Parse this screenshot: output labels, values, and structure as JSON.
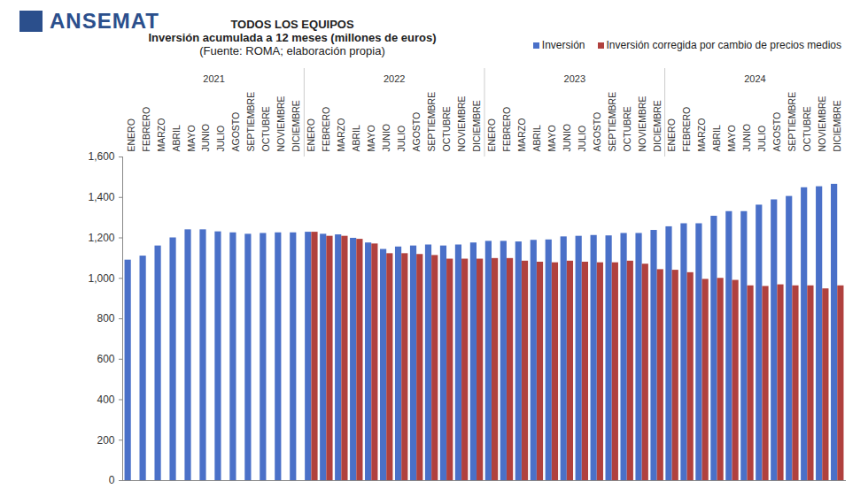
{
  "chart_data": {
    "type": "bar",
    "brand": "ANSEMAT",
    "title": "TODOS LOS EQUIPOS",
    "subtitle": "Inversión acumulada a 12 meses (millones de euros)",
    "caption": "(Fuente: ROMA; elaboración propia)",
    "category_groups": [
      "2021",
      "2022",
      "2023",
      "2024"
    ],
    "categories": [
      "ENERO",
      "FEBRERO",
      "MARZO",
      "ABRIL",
      "MAYO",
      "JUNIO",
      "JULIO",
      "AGOSTO",
      "SEPTIEMBRE",
      "OCTUBRE",
      "NOVIEMBRE",
      "DICIEMBRE",
      "ENERO",
      "FEBRERO",
      "MARZO",
      "ABRIL",
      "MAYO",
      "JUNIO",
      "JULIO",
      "AGOSTO",
      "SEPTIEMBRE",
      "OCTUBRE",
      "NOVIEMBRE",
      "DICIEMBRE",
      "ENERO",
      "FEBRERO",
      "MARZO",
      "ABRIL",
      "MAYO",
      "JUNIO",
      "JULIO",
      "AGOSTO",
      "SEPTIEMBRE",
      "OCTUBRE",
      "NOVIEMBRE",
      "DICIEMBRE",
      "ENERO",
      "FEBRERO",
      "MARZO",
      "ABRIL",
      "MAYO",
      "JUNIO",
      "JULIO",
      "AGOSTO",
      "SEPTIEMBRE",
      "OCTUBRE",
      "NOVIEMBRE",
      "DICIEMBRE"
    ],
    "series": [
      {
        "name": "Inversión",
        "color": "#4a70c8",
        "values": [
          1090,
          1110,
          1160,
          1200,
          1240,
          1240,
          1230,
          1225,
          1218,
          1222,
          1225,
          1225,
          1228,
          1218,
          1215,
          1198,
          1175,
          1143,
          1155,
          1160,
          1165,
          1160,
          1165,
          1175,
          1183,
          1183,
          1180,
          1188,
          1190,
          1205,
          1208,
          1212,
          1210,
          1222,
          1222,
          1237,
          1255,
          1270,
          1270,
          1307,
          1330,
          1330,
          1362,
          1388,
          1405,
          1448,
          1453,
          1465
        ]
      },
      {
        "name": "Inversión corregida por cambio de precios medios",
        "color": "#b0413e",
        "values": [
          null,
          null,
          null,
          null,
          null,
          null,
          null,
          null,
          null,
          null,
          null,
          null,
          1228,
          1208,
          1208,
          1193,
          1170,
          1122,
          1122,
          1118,
          1113,
          1095,
          1095,
          1095,
          1098,
          1098,
          1085,
          1080,
          1077,
          1085,
          1080,
          1077,
          1077,
          1085,
          1070,
          1043,
          1040,
          1028,
          995,
          1000,
          990,
          963,
          960,
          968,
          963,
          963,
          948,
          963
        ]
      }
    ],
    "ylim": [
      0,
      1600
    ],
    "yticks": [
      0,
      200,
      400,
      600,
      800,
      1000,
      1200,
      1400,
      1600
    ],
    "grid": false,
    "legend": "top-right"
  }
}
